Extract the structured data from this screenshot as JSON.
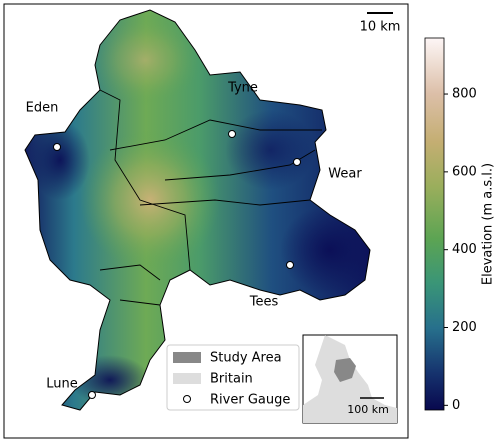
{
  "map": {
    "regions": [
      {
        "label": "Eden"
      },
      {
        "label": "Tyne"
      },
      {
        "label": "Wear"
      },
      {
        "label": "Tees"
      },
      {
        "label": "Lune"
      }
    ],
    "scale_bar": "10 km",
    "legend": [
      {
        "label": "Study Area"
      },
      {
        "label": "Britain"
      },
      {
        "label": "River Gauge"
      }
    ],
    "inset": {
      "scale_bar": "100 km"
    }
  },
  "colorbar": {
    "label": "Elevation (m a.s.l.)",
    "lim": [
      -12,
      944
    ],
    "ticks": [
      0,
      200,
      400,
      600,
      800
    ]
  }
}
